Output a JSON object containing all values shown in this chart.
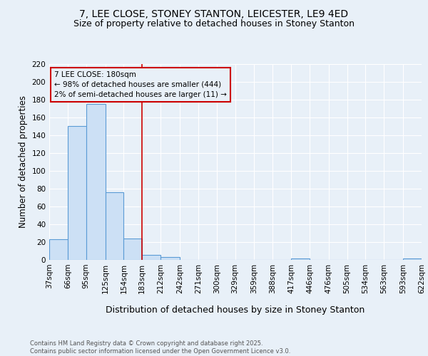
{
  "title1": "7, LEE CLOSE, STONEY STANTON, LEICESTER, LE9 4ED",
  "title2": "Size of property relative to detached houses in Stoney Stanton",
  "xlabel": "Distribution of detached houses by size in Stoney Stanton",
  "ylabel": "Number of detached properties",
  "bin_edges": [
    37,
    66,
    95,
    125,
    154,
    183,
    212,
    242,
    271,
    300,
    329,
    359,
    388,
    417,
    446,
    476,
    505,
    534,
    563,
    593,
    622
  ],
  "bar_heights": [
    23,
    150,
    175,
    76,
    24,
    6,
    3,
    0,
    0,
    0,
    0,
    0,
    0,
    2,
    0,
    0,
    0,
    0,
    0,
    2
  ],
  "bar_facecolor": "#cce0f5",
  "bar_edgecolor": "#5b9bd5",
  "bg_color": "#e8f0f8",
  "grid_color": "#ffffff",
  "vline_x": 183,
  "vline_color": "#cc0000",
  "annotation_text": "7 LEE CLOSE: 180sqm\n← 98% of detached houses are smaller (444)\n2% of semi-detached houses are larger (11) →",
  "annotation_box_color": "#cc0000",
  "ylim": [
    0,
    220
  ],
  "yticks": [
    0,
    20,
    40,
    60,
    80,
    100,
    120,
    140,
    160,
    180,
    200,
    220
  ],
  "footer": "Contains HM Land Registry data © Crown copyright and database right 2025.\nContains public sector information licensed under the Open Government Licence v3.0.",
  "title1_fontsize": 10,
  "title2_fontsize": 9,
  "xlabel_fontsize": 9,
  "ylabel_fontsize": 8.5,
  "tick_fontsize": 7.5,
  "ann_fontsize": 7.5
}
